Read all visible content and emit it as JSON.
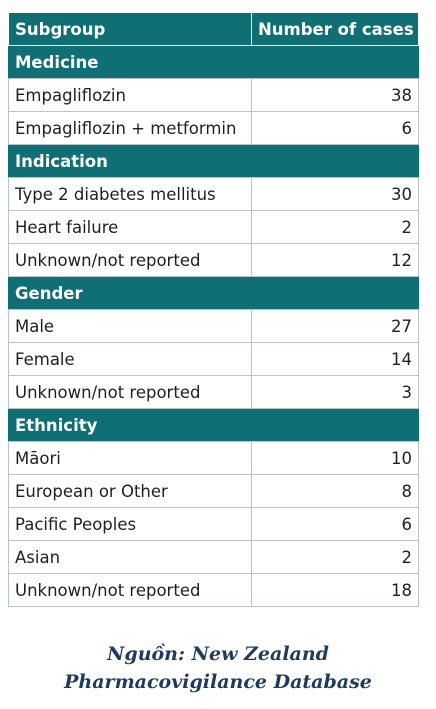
{
  "table": {
    "headers": [
      "Subgroup",
      "Number of cases"
    ],
    "groups": [
      {
        "title": "Medicine",
        "rows": [
          {
            "label": "Empagliflozin",
            "value": "38"
          },
          {
            "label": "Empagliflozin + metformin",
            "value": "6"
          }
        ]
      },
      {
        "title": "Indication",
        "rows": [
          {
            "label": "Type 2 diabetes mellitus",
            "value": "30"
          },
          {
            "label": "Heart failure",
            "value": "2"
          },
          {
            "label": "Unknown/not reported",
            "value": "12"
          }
        ]
      },
      {
        "title": "Gender",
        "rows": [
          {
            "label": "Male",
            "value": "27"
          },
          {
            "label": "Female",
            "value": "14"
          },
          {
            "label": "Unknown/not reported",
            "value": "3"
          }
        ]
      },
      {
        "title": "Ethnicity",
        "rows": [
          {
            "label": "Māori",
            "value": "10"
          },
          {
            "label": "European or Other",
            "value": "8"
          },
          {
            "label": "Pacific Peoples",
            "value": "6"
          },
          {
            "label": "Asian",
            "value": "2"
          },
          {
            "label": "Unknown/not reported",
            "value": "18"
          }
        ]
      }
    ]
  },
  "source": {
    "line1": "Nguồn: New Zealand",
    "line2": "Pharmacovigilance Database"
  },
  "colors": {
    "header_bg": "#0f6f75",
    "source_text": "#1e3a5f"
  }
}
